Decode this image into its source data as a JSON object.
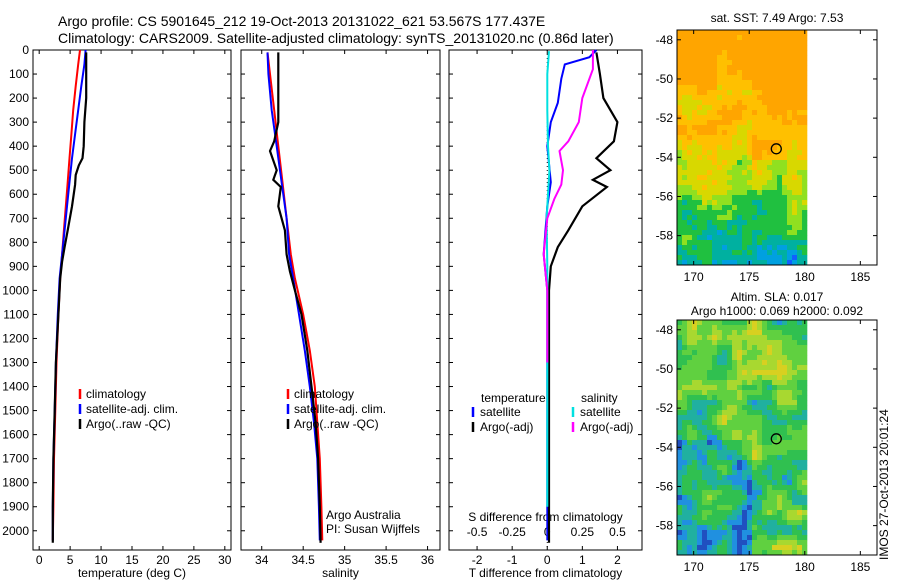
{
  "header": {
    "line1": "Argo profile: CS 5901645_212 19-Oct-2013 20131022_621 53.567S 177.437E",
    "line2": "Climatology: CARS2009. Satellite-adjusted climatology: synTS_20131020.nc (0.86d later)"
  },
  "colors": {
    "climatology": "#ff0000",
    "satellite": "#0000ff",
    "argo": "#000000",
    "sat_salinity": "#00e0e0",
    "argo_salinity": "#ff00ff"
  },
  "chart_data": [
    {
      "id": "temperature",
      "type": "line",
      "xlabel": "temperature (deg C)",
      "ylabel": "",
      "xlim": [
        -1,
        31
      ],
      "ylim": [
        2080,
        0
      ],
      "y_inverted": true,
      "xticks": [
        0,
        5,
        10,
        15,
        20,
        25,
        30
      ],
      "yticks": [
        0,
        100,
        200,
        300,
        400,
        500,
        600,
        700,
        800,
        900,
        1000,
        1100,
        1200,
        1300,
        1400,
        1500,
        1600,
        1700,
        1800,
        1900,
        2000
      ],
      "legend": {
        "placement": "lower-center",
        "entries": [
          "climatology",
          "satellite-adj. clim.",
          "Argo(..raw -QC)"
        ]
      },
      "series": [
        {
          "name": "climatology",
          "color": "red",
          "points": [
            [
              6.6,
              0
            ],
            [
              6.3,
              60
            ],
            [
              5.9,
              150
            ],
            [
              5.5,
              250
            ],
            [
              5.2,
              350
            ],
            [
              4.9,
              450
            ],
            [
              4.6,
              550
            ],
            [
              4.3,
              650
            ],
            [
              4.0,
              750
            ],
            [
              3.7,
              850
            ],
            [
              3.4,
              950
            ],
            [
              3.1,
              1100
            ],
            [
              2.8,
              1300
            ],
            [
              2.6,
              1500
            ],
            [
              2.4,
              1700
            ],
            [
              2.3,
              1900
            ],
            [
              2.2,
              2040
            ]
          ]
        },
        {
          "name": "satellite-adj. clim.",
          "color": "blue",
          "points": [
            [
              7.5,
              0
            ],
            [
              7.3,
              60
            ],
            [
              6.8,
              150
            ],
            [
              6.3,
              250
            ],
            [
              5.8,
              350
            ],
            [
              5.3,
              450
            ],
            [
              4.9,
              550
            ],
            [
              4.5,
              650
            ],
            [
              4.1,
              750
            ],
            [
              3.7,
              850
            ],
            [
              3.3,
              950
            ],
            [
              3.0,
              1100
            ],
            [
              2.7,
              1300
            ],
            [
              2.5,
              1500
            ],
            [
              2.3,
              1700
            ],
            [
              2.2,
              1900
            ],
            [
              2.2,
              2040
            ]
          ]
        },
        {
          "name": "Argo(..raw -QC)",
          "color": "black",
          "points": [
            [
              7.6,
              10
            ],
            [
              7.6,
              200
            ],
            [
              7.3,
              300
            ],
            [
              7.2,
              400
            ],
            [
              7.0,
              450
            ],
            [
              6.4,
              480
            ],
            [
              5.9,
              520
            ],
            [
              5.8,
              560
            ],
            [
              5.3,
              650
            ],
            [
              4.6,
              750
            ],
            [
              4.1,
              820
            ],
            [
              3.7,
              880
            ],
            [
              3.4,
              950
            ],
            [
              3.1,
              1100
            ],
            [
              2.7,
              1300
            ],
            [
              2.5,
              1500
            ],
            [
              2.3,
              1700
            ],
            [
              2.2,
              1900
            ],
            [
              2.2,
              2050
            ]
          ]
        }
      ]
    },
    {
      "id": "salinity",
      "type": "line",
      "xlabel": "salinity",
      "ylabel": "",
      "xlim": [
        33.75,
        36.15
      ],
      "ylim": [
        2080,
        0
      ],
      "y_inverted": true,
      "xticks": [
        34,
        34.5,
        35,
        35.5,
        36
      ],
      "legend": {
        "placement": "lower-center",
        "entries": [
          "climatology",
          "satellite-adj. clim.",
          "Argo(..raw -QC)"
        ]
      },
      "annotations": [
        "Argo Australia",
        "PI: Susan Wijffels"
      ],
      "series": [
        {
          "name": "climatology",
          "color": "red",
          "points": [
            [
              34.07,
              10
            ],
            [
              34.1,
              100
            ],
            [
              34.15,
              250
            ],
            [
              34.2,
              400
            ],
            [
              34.25,
              550
            ],
            [
              34.3,
              700
            ],
            [
              34.35,
              850
            ],
            [
              34.4,
              950
            ],
            [
              34.5,
              1100
            ],
            [
              34.58,
              1250
            ],
            [
              34.64,
              1400
            ],
            [
              34.67,
              1550
            ],
            [
              34.7,
              1700
            ],
            [
              34.72,
              1900
            ],
            [
              34.73,
              2040
            ]
          ]
        },
        {
          "name": "satellite-adj. clim.",
          "color": "blue",
          "points": [
            [
              34.07,
              10
            ],
            [
              34.08,
              100
            ],
            [
              34.12,
              250
            ],
            [
              34.18,
              400
            ],
            [
              34.24,
              550
            ],
            [
              34.3,
              700
            ],
            [
              34.33,
              850
            ],
            [
              34.38,
              950
            ],
            [
              34.45,
              1100
            ],
            [
              34.52,
              1250
            ],
            [
              34.58,
              1400
            ],
            [
              34.63,
              1550
            ],
            [
              34.67,
              1700
            ],
            [
              34.69,
              1900
            ],
            [
              34.7,
              2040
            ]
          ]
        },
        {
          "name": "Argo(..raw -QC)",
          "color": "black",
          "points": [
            [
              34.2,
              10
            ],
            [
              34.2,
              300
            ],
            [
              34.15,
              380
            ],
            [
              34.1,
              420
            ],
            [
              34.18,
              500
            ],
            [
              34.14,
              540
            ],
            [
              34.23,
              570
            ],
            [
              34.2,
              650
            ],
            [
              34.28,
              750
            ],
            [
              34.3,
              850
            ],
            [
              34.34,
              920
            ],
            [
              34.4,
              1000
            ],
            [
              34.48,
              1100
            ],
            [
              34.55,
              1250
            ],
            [
              34.6,
              1400
            ],
            [
              34.65,
              1550
            ],
            [
              34.68,
              1700
            ],
            [
              34.7,
              1900
            ],
            [
              34.71,
              2050
            ]
          ]
        }
      ]
    },
    {
      "id": "difference",
      "type": "line",
      "xlabel": "T difference from climatology",
      "x2label": "S difference from climatology",
      "ylabel": "",
      "xlim": [
        -2.8,
        2.7
      ],
      "ylim": [
        2080,
        0
      ],
      "y_inverted": true,
      "xticks": [
        -2,
        -1,
        0,
        1,
        2
      ],
      "x2ticks": [
        -0.5,
        -0.25,
        0,
        0.25,
        0.5
      ],
      "legend": {
        "placement": "lower-center",
        "temperature_title": "temperature",
        "salinity_title": "salinity",
        "entries": [
          "satellite",
          "Argo(-adj)",
          "satellite",
          "Argo(-adj)"
        ]
      },
      "series": [
        {
          "name": "satellite",
          "group": "temperature",
          "color": "blue",
          "points": [
            [
              1.4,
              0
            ],
            [
              1.2,
              30
            ],
            [
              0.5,
              60
            ],
            [
              0.4,
              120
            ],
            [
              0.3,
              220
            ],
            [
              0.1,
              300
            ],
            [
              0.0,
              400
            ],
            [
              0.1,
              550
            ],
            [
              0.0,
              650
            ],
            [
              -0.1,
              850
            ],
            [
              0.0,
              1000
            ],
            [
              0.0,
              2040
            ]
          ]
        },
        {
          "name": "Argo(-adj)",
          "group": "temperature",
          "color": "black",
          "points": [
            [
              1.4,
              10
            ],
            [
              1.5,
              100
            ],
            [
              1.6,
              200
            ],
            [
              2.0,
              300
            ],
            [
              1.9,
              380
            ],
            [
              1.4,
              450
            ],
            [
              1.8,
              500
            ],
            [
              1.3,
              540
            ],
            [
              1.7,
              570
            ],
            [
              1.0,
              650
            ],
            [
              0.6,
              750
            ],
            [
              0.3,
              820
            ],
            [
              0.1,
              900
            ],
            [
              0.05,
              1000
            ],
            [
              0.05,
              2050
            ]
          ]
        },
        {
          "name": "satellite",
          "group": "salinity",
          "color": "cyan",
          "points": [
            [
              0.05,
              5
            ],
            [
              0.0,
              100
            ],
            [
              0.0,
              250
            ],
            [
              0.02,
              400
            ],
            [
              0.06,
              500
            ],
            [
              -0.02,
              700
            ],
            [
              0.0,
              900
            ],
            [
              0.0,
              1100
            ],
            [
              0.0,
              1900
            ]
          ]
        },
        {
          "name": "Argo(-adj)",
          "group": "salinity",
          "color": "magenta",
          "points": [
            [
              1.3,
              0
            ],
            [
              1.3,
              80
            ],
            [
              1.0,
              200
            ],
            [
              0.9,
              300
            ],
            [
              0.6,
              380
            ],
            [
              0.35,
              420
            ],
            [
              0.45,
              500
            ],
            [
              0.4,
              560
            ],
            [
              0.2,
              620
            ],
            [
              0.0,
              700
            ],
            [
              -0.1,
              850
            ],
            [
              0.0,
              1000
            ],
            [
              0.0,
              1300
            ]
          ]
        }
      ]
    },
    {
      "id": "sst-map",
      "type": "heatmap",
      "title": "sat. SST: 7.49  Argo: 7.53",
      "xlim": [
        168.5,
        186.5
      ],
      "ylim": [
        -59.5,
        -47.5
      ],
      "xticks": [
        170,
        175,
        180,
        185
      ],
      "yticks": [
        -48,
        -50,
        -52,
        -54,
        -56,
        -58
      ],
      "data_extent_x": [
        168.5,
        180
      ],
      "float_position": {
        "lon": 177.437,
        "lat": -53.567
      }
    },
    {
      "id": "sla-map",
      "type": "heatmap",
      "title": "Altim. SLA: 0.017",
      "subtitle": "Argo h1000: 0.069 h2000: 0.092",
      "xlim": [
        168.5,
        186.5
      ],
      "ylim": [
        -59.5,
        -47.5
      ],
      "xticks": [
        170,
        175,
        180,
        185
      ],
      "yticks": [
        -48,
        -50,
        -52,
        -54,
        -56,
        -58
      ],
      "data_extent_x": [
        168.5,
        180
      ],
      "float_position": {
        "lon": 177.437,
        "lat": -53.567
      }
    }
  ],
  "footer_stamp": "IMOS 27-Oct-2013 20:01:24"
}
